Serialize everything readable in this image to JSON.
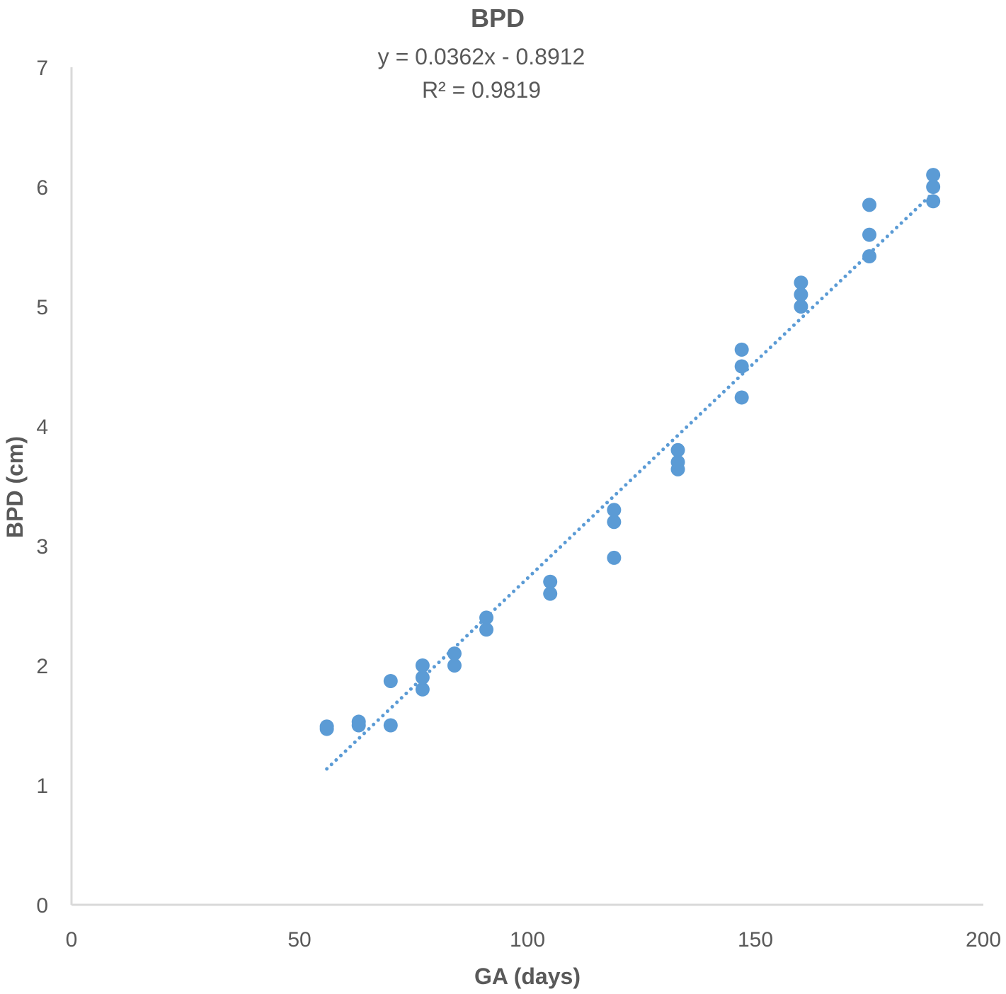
{
  "chart_data": {
    "type": "scatter",
    "title": "BPD",
    "annotations": {
      "equation": "y = 0.0362x - 0.8912",
      "r_squared": "R² = 0.9819"
    },
    "xlabel": "GA (days)",
    "ylabel": "BPD (cm)",
    "xlim": [
      0,
      200
    ],
    "ylim": [
      0,
      7
    ],
    "xticks": [
      "0",
      "50",
      "100",
      "150",
      "200"
    ],
    "yticks": [
      "0",
      "1",
      "2",
      "3",
      "4",
      "5",
      "6",
      "7"
    ],
    "grid": false,
    "legend": "none",
    "series": [
      {
        "color": "#5b9bd5",
        "points": [
          {
            "x": 56,
            "y": 1.47
          },
          {
            "x": 56,
            "y": 1.49
          },
          {
            "x": 63,
            "y": 1.5
          },
          {
            "x": 63,
            "y": 1.53
          },
          {
            "x": 70,
            "y": 1.5
          },
          {
            "x": 70,
            "y": 1.87
          },
          {
            "x": 77,
            "y": 1.8
          },
          {
            "x": 77,
            "y": 1.9
          },
          {
            "x": 77,
            "y": 2.0
          },
          {
            "x": 84,
            "y": 2.0
          },
          {
            "x": 84,
            "y": 2.1
          },
          {
            "x": 91,
            "y": 2.3
          },
          {
            "x": 91,
            "y": 2.4
          },
          {
            "x": 105,
            "y": 2.6
          },
          {
            "x": 105,
            "y": 2.7
          },
          {
            "x": 119,
            "y": 2.9
          },
          {
            "x": 119,
            "y": 3.2
          },
          {
            "x": 119,
            "y": 3.3
          },
          {
            "x": 133,
            "y": 3.64
          },
          {
            "x": 133,
            "y": 3.7
          },
          {
            "x": 133,
            "y": 3.8
          },
          {
            "x": 147,
            "y": 4.24
          },
          {
            "x": 147,
            "y": 4.5
          },
          {
            "x": 147,
            "y": 4.64
          },
          {
            "x": 160,
            "y": 5.0
          },
          {
            "x": 160,
            "y": 5.1
          },
          {
            "x": 160,
            "y": 5.2
          },
          {
            "x": 175,
            "y": 5.42
          },
          {
            "x": 175,
            "y": 5.6
          },
          {
            "x": 175,
            "y": 5.85
          },
          {
            "x": 189,
            "y": 5.88
          },
          {
            "x": 189,
            "y": 6.0
          },
          {
            "x": 189,
            "y": 6.1
          }
        ]
      }
    ],
    "trendline": {
      "style": "dotted",
      "slope": 0.0362,
      "intercept": -0.8912,
      "x_range": [
        56,
        189
      ]
    }
  }
}
